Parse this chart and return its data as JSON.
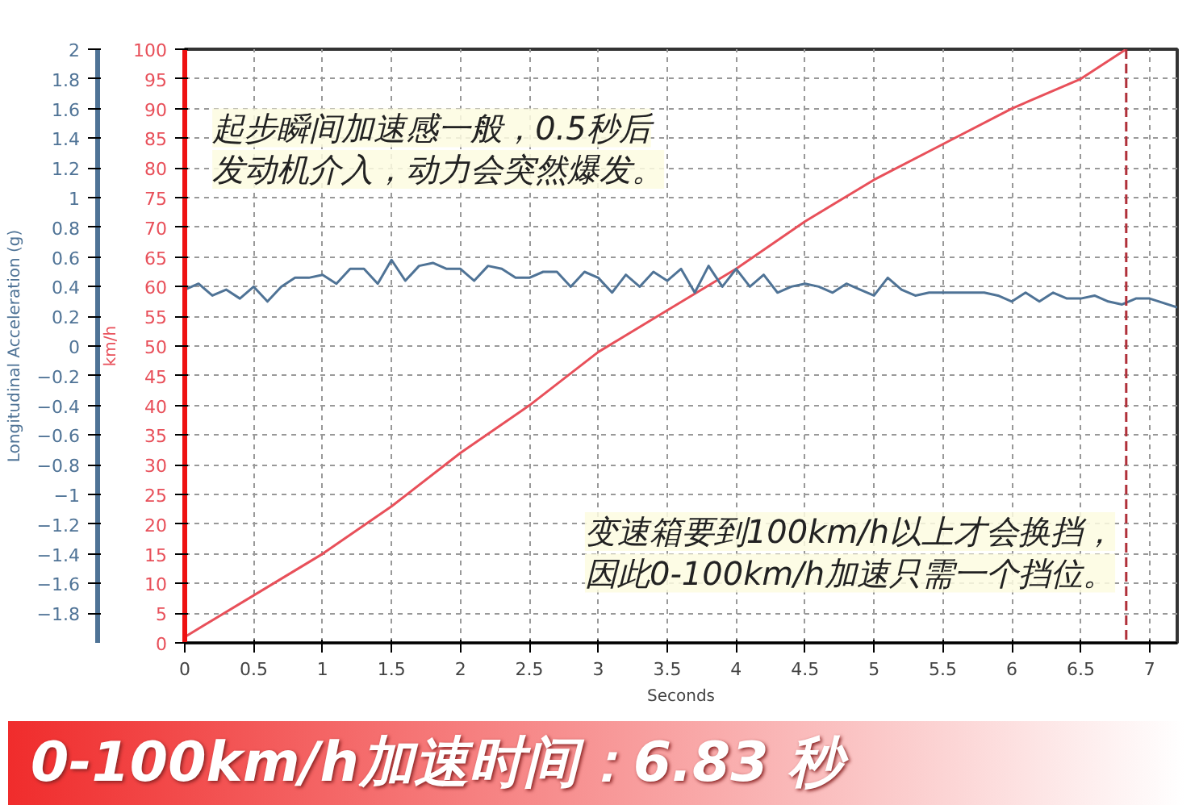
{
  "chart_data": {
    "type": "line",
    "xlabel": "Seconds",
    "ylabel": "km/h",
    "y2label": "Longitudinal Acceleration (g)",
    "xlim": [
      0,
      7.2
    ],
    "xticks": [
      0,
      0.5,
      1,
      1.5,
      2,
      2.5,
      3,
      3.5,
      4,
      4.5,
      5,
      5.5,
      6,
      6.5,
      7
    ],
    "ylim": [
      0,
      100
    ],
    "yticks": [
      0,
      5,
      10,
      15,
      20,
      25,
      30,
      35,
      40,
      45,
      50,
      55,
      60,
      65,
      70,
      75,
      80,
      85,
      90,
      95,
      100
    ],
    "y2lim": [
      -2,
      2
    ],
    "y2ticks": [
      -1.8,
      -1.6,
      -1.4,
      -1.2,
      -1,
      -0.8,
      -0.6,
      -0.4,
      -0.2,
      0,
      0.2,
      0.4,
      0.6,
      0.8,
      1,
      1.2,
      1.4,
      1.6,
      1.8,
      2
    ],
    "grid": true,
    "marker": "none",
    "line_style": "solid",
    "series": [
      {
        "color": "#e8505a",
        "x": [
          0,
          0.5,
          1,
          1.5,
          2,
          2.5,
          3,
          3.5,
          4,
          4.5,
          5,
          5.5,
          6,
          6.5,
          6.83
        ],
        "values": [
          1,
          8,
          15,
          23,
          32,
          40,
          49,
          56,
          63,
          71,
          78,
          84,
          90,
          95,
          100
        ]
      },
      {
        "color": "#4f7396",
        "axis": "y2",
        "x": [
          0,
          0.1,
          0.2,
          0.3,
          0.4,
          0.5,
          0.6,
          0.7,
          0.8,
          0.9,
          1.0,
          1.1,
          1.2,
          1.3,
          1.4,
          1.5,
          1.6,
          1.7,
          1.8,
          1.9,
          2.0,
          2.1,
          2.2,
          2.3,
          2.4,
          2.5,
          2.6,
          2.7,
          2.8,
          2.9,
          3.0,
          3.1,
          3.2,
          3.3,
          3.4,
          3.5,
          3.6,
          3.7,
          3.8,
          3.9,
          4.0,
          4.1,
          4.2,
          4.3,
          4.4,
          4.5,
          4.6,
          4.7,
          4.8,
          4.9,
          5.0,
          5.1,
          5.2,
          5.3,
          5.4,
          5.5,
          5.6,
          5.7,
          5.8,
          5.9,
          6.0,
          6.1,
          6.2,
          6.3,
          6.4,
          6.5,
          6.6,
          6.7,
          6.8,
          6.9,
          7.0,
          7.2
        ],
        "values": [
          0.38,
          0.42,
          0.34,
          0.38,
          0.32,
          0.4,
          0.3,
          0.4,
          0.46,
          0.46,
          0.48,
          0.42,
          0.52,
          0.52,
          0.42,
          0.58,
          0.44,
          0.54,
          0.56,
          0.52,
          0.52,
          0.44,
          0.54,
          0.52,
          0.46,
          0.46,
          0.5,
          0.5,
          0.4,
          0.5,
          0.46,
          0.36,
          0.48,
          0.4,
          0.5,
          0.44,
          0.52,
          0.36,
          0.54,
          0.4,
          0.52,
          0.4,
          0.48,
          0.36,
          0.4,
          0.42,
          0.4,
          0.36,
          0.42,
          0.38,
          0.34,
          0.46,
          0.38,
          0.34,
          0.36,
          0.36,
          0.36,
          0.36,
          0.36,
          0.34,
          0.3,
          0.36,
          0.3,
          0.36,
          0.32,
          0.32,
          0.34,
          0.3,
          0.28,
          0.32,
          0.32,
          0.26
        ]
      }
    ],
    "ref_lines": [
      {
        "axis": "x",
        "value": 6.83,
        "color": "#b0303a",
        "line_style": "dashed"
      }
    ],
    "annotations": [
      "起步瞬间加速感一般，0.5秒后",
      "发动机介入，动力会突然爆发。",
      "变速箱要到100km/h以上才会换挡，",
      "因此0-100km/h加速只需一个挡位。",
      "0-100km/h加速时间：6.83 秒"
    ]
  }
}
